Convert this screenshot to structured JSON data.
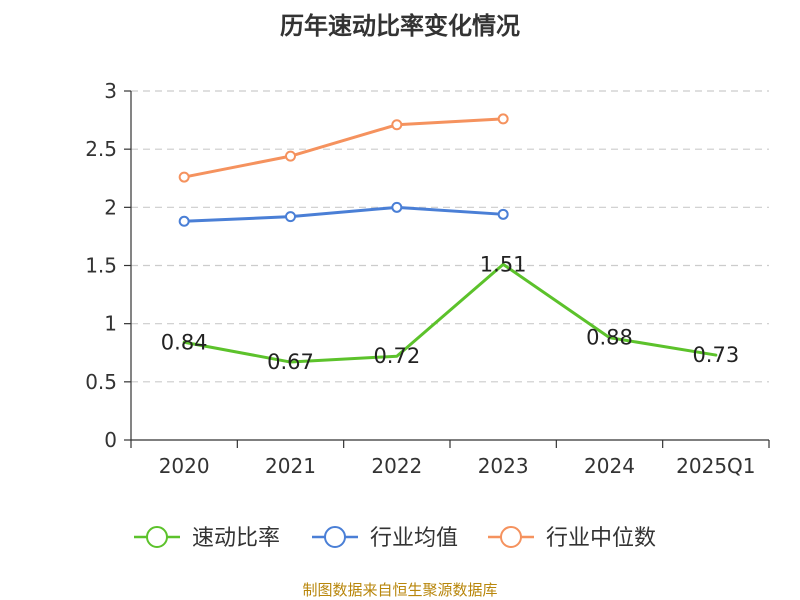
{
  "title": "历年速动比率变化情况",
  "source": "制图数据来自恒生聚源数据库",
  "chart_data": {
    "type": "line",
    "categories": [
      "2020",
      "2021",
      "2022",
      "2023",
      "2024",
      "2025Q1"
    ],
    "ylim": [
      0,
      3
    ],
    "yticks": [
      0,
      0.5,
      1,
      1.5,
      2,
      2.5,
      3
    ],
    "ytick_labels": [
      "0",
      "0.5",
      "1",
      "1.5",
      "2",
      "2.5",
      "3"
    ],
    "grid": true,
    "legend_position": "bottom",
    "series": [
      {
        "name": "速动比率",
        "color": "#5cc22b",
        "values": [
          0.84,
          0.67,
          0.72,
          1.51,
          0.88,
          0.73
        ],
        "labels": [
          "0.84",
          "0.67",
          "0.72",
          "1.51",
          "0.88",
          "0.73"
        ],
        "show_markers": false,
        "show_labels": true
      },
      {
        "name": "行业均值",
        "color": "#4a7fd6",
        "values": [
          1.88,
          1.92,
          2.0,
          1.94,
          null,
          null
        ],
        "show_markers": true,
        "show_labels": false
      },
      {
        "name": "行业中位数",
        "color": "#f5925e",
        "values": [
          2.26,
          2.44,
          2.71,
          2.76,
          null,
          null
        ],
        "show_markers": true,
        "show_labels": false
      }
    ]
  }
}
